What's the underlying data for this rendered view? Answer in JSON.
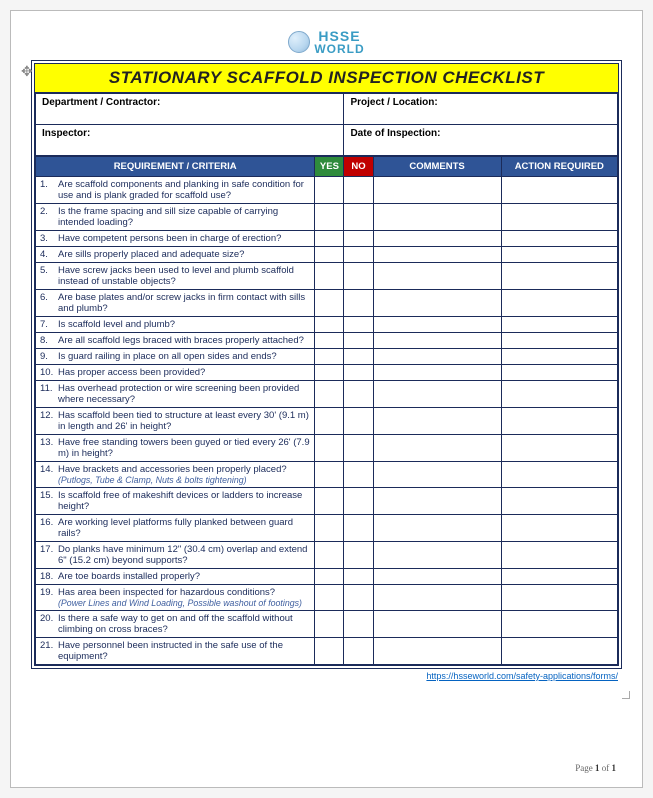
{
  "logo": {
    "line1": "HSSE",
    "line2": "WORLD"
  },
  "title": "STATIONARY SCAFFOLD INSPECTION CHECKLIST",
  "info": {
    "dept_label": "Department / Contractor:",
    "proj_label": "Project / Location:",
    "inspector_label": "Inspector:",
    "date_label": "Date of Inspection:"
  },
  "headers": {
    "req": "REQUIREMENT / CRITERIA",
    "yes": "YES",
    "no": "NO",
    "comments": "COMMENTS",
    "action": "ACTION REQUIRED"
  },
  "rows": [
    {
      "n": "1.",
      "t": "Are scaffold components and planking in safe condition for use and is plank graded for scaffold use?"
    },
    {
      "n": "2.",
      "t": "Is the frame spacing and sill size capable of carrying intended loading?"
    },
    {
      "n": "3.",
      "t": "Have competent persons been in charge of erection?"
    },
    {
      "n": "4.",
      "t": "Are sills properly placed and adequate size?"
    },
    {
      "n": "5.",
      "t": "Have screw jacks been used to level and plumb scaffold instead of unstable objects?"
    },
    {
      "n": "6.",
      "t": "Are base plates and/or screw jacks in firm contact with sills and plumb?"
    },
    {
      "n": "7.",
      "t": "Is scaffold level and plumb?"
    },
    {
      "n": "8.",
      "t": "Are all scaffold legs braced with braces properly attached?"
    },
    {
      "n": "9.",
      "t": "Is guard railing in place on all open sides and ends?"
    },
    {
      "n": "10.",
      "t": "Has proper access been provided?"
    },
    {
      "n": "11.",
      "t": "Has overhead protection or wire screening been provided where necessary?"
    },
    {
      "n": "12.",
      "t": "Has scaffold been tied to structure at least every 30' (9.1 m) in length and 26' in height?"
    },
    {
      "n": "13.",
      "t": "Have free standing towers been guyed or tied every 26' (7.9 m) in height?"
    },
    {
      "n": "14.",
      "t": "Have brackets and accessories been properly placed?",
      "s": "(Putlogs, Tube & Clamp, Nuts & bolts tightening)"
    },
    {
      "n": "15.",
      "t": "Is scaffold free of makeshift devices or ladders to increase height?"
    },
    {
      "n": "16.",
      "t": "Are working level platforms fully planked between guard rails?"
    },
    {
      "n": "17.",
      "t": "Do planks have minimum 12\" (30.4 cm) overlap and extend 6\" (15.2 cm) beyond supports?"
    },
    {
      "n": "18.",
      "t": "Are toe boards installed properly?"
    },
    {
      "n": "19.",
      "t": "Has area been inspected for hazardous conditions?",
      "s": "(Power Lines and Wind Loading, Possible washout of footings)"
    },
    {
      "n": "20.",
      "t": "Is there a safe way to get on and off the scaffold without climbing on cross braces?"
    },
    {
      "n": "21.",
      "t": "Have personnel been instructed in the safe use of the equipment?"
    }
  ],
  "footer_link_text": "https://hsseworld.com/safety-applications/forms/",
  "footer_link_href": "https://hsseworld.com/safety-applications/forms/",
  "page_label_prefix": "Page ",
  "page_current": "1",
  "page_of": " of ",
  "page_total": "1"
}
